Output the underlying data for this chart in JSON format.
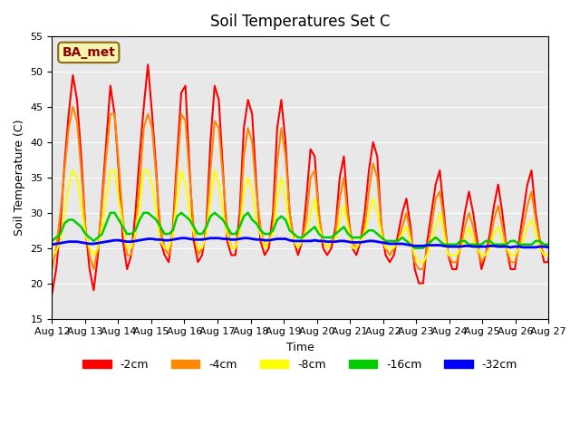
{
  "title": "Soil Temperatures Set C",
  "xlabel": "Time",
  "ylabel": "Soil Temperature (C)",
  "ylim": [
    15,
    55
  ],
  "yticks": [
    15,
    20,
    25,
    30,
    35,
    40,
    45,
    50,
    55
  ],
  "annotation": "BA_met",
  "legend_labels": [
    "-2cm",
    "-4cm",
    "-8cm",
    "-16cm",
    "-32cm"
  ],
  "colors": [
    "#ff0000",
    "#ff8800",
    "#ffff00",
    "#00cc00",
    "#0000ff"
  ],
  "background_color": "#e8e8e8",
  "dates": [
    "Aug 12",
    "Aug 13",
    "Aug 14",
    "Aug 15",
    "Aug 16",
    "Aug 17",
    "Aug 18",
    "Aug 19",
    "Aug 20",
    "Aug 21",
    "Aug 22",
    "Aug 23",
    "Aug 24",
    "Aug 25",
    "Aug 26",
    "Aug 27"
  ],
  "n_days": 16,
  "samples_per_day": 8,
  "neg2cm": [
    18.5,
    22,
    28,
    37,
    44,
    49.5,
    46,
    38,
    28,
    22,
    19,
    24,
    32,
    40,
    48,
    44,
    36,
    26,
    22,
    24,
    30,
    38,
    45,
    51,
    44,
    36,
    26,
    24,
    23,
    28,
    38,
    47,
    48,
    36,
    26,
    23,
    24,
    28,
    40,
    48,
    46,
    36,
    26,
    24,
    24,
    30,
    42,
    46,
    44,
    34,
    26,
    24,
    25,
    30,
    42,
    46,
    40,
    30,
    26,
    24,
    26,
    32,
    39,
    38,
    30,
    25,
    24,
    25,
    28,
    35,
    38,
    30,
    25,
    24,
    26,
    30,
    36,
    40,
    38,
    28,
    24,
    23,
    24,
    27,
    30,
    32,
    28,
    22,
    20,
    20,
    26,
    30,
    34,
    36,
    30,
    24,
    22,
    22,
    26,
    30,
    33,
    30,
    26,
    22,
    24,
    27,
    31,
    34,
    30,
    25,
    22,
    22,
    26,
    30,
    34,
    36,
    30,
    26,
    23,
    23,
    27,
    32,
    34,
    30,
    25,
    23,
    23,
    22
  ],
  "neg4cm": [
    22,
    25,
    30,
    36,
    42,
    45,
    43,
    36,
    28,
    24,
    22,
    25,
    31,
    38,
    44,
    44,
    37,
    29,
    24,
    24,
    27,
    34,
    42,
    44,
    42,
    35,
    28,
    25,
    24,
    27,
    36,
    44,
    43,
    35,
    28,
    24,
    25,
    27,
    36,
    43,
    42,
    35,
    28,
    25,
    25,
    28,
    38,
    42,
    40,
    33,
    28,
    25,
    26,
    28,
    37,
    42,
    38,
    30,
    26,
    25,
    26,
    29,
    35,
    36,
    30,
    26,
    25,
    26,
    27,
    32,
    35,
    29,
    26,
    25,
    26,
    28,
    33,
    37,
    35,
    28,
    25,
    24,
    25,
    26,
    28,
    30,
    27,
    23,
    22,
    22,
    25,
    28,
    32,
    33,
    29,
    24,
    23,
    23,
    25,
    28,
    30,
    28,
    25,
    23,
    24,
    26,
    29,
    31,
    28,
    25,
    23,
    23,
    25,
    28,
    31,
    33,
    29,
    26,
    24,
    24,
    26,
    30,
    31,
    28,
    25,
    24,
    24,
    23
  ],
  "neg8cm": [
    24,
    24.5,
    26,
    30,
    34,
    36,
    35,
    31,
    27,
    25,
    24,
    25,
    28,
    32,
    36,
    36,
    32,
    28,
    25,
    25,
    27,
    31,
    36,
    36,
    34,
    30,
    26,
    25,
    25,
    27,
    32,
    36,
    34,
    30,
    27,
    25,
    25,
    27,
    32,
    36,
    34,
    30,
    27,
    25,
    25,
    27,
    33,
    35,
    33,
    29,
    27,
    25,
    26,
    27,
    32,
    35,
    32,
    28,
    26,
    25,
    26,
    27,
    30,
    32,
    28,
    26,
    25,
    26,
    26,
    29,
    31,
    28,
    25,
    25,
    26,
    27,
    30,
    32,
    30,
    27,
    25,
    25,
    25,
    26,
    27,
    28,
    26,
    24,
    23,
    23,
    24,
    26,
    28,
    30,
    27,
    24,
    24,
    24,
    25,
    26,
    28,
    26,
    25,
    24,
    24,
    25,
    27,
    28,
    26,
    25,
    24,
    24,
    25,
    26,
    28,
    29,
    27,
    25,
    24,
    24,
    25,
    27,
    28,
    26,
    25,
    24,
    24,
    24
  ],
  "neg16cm": [
    26,
    26.5,
    27,
    28.5,
    29,
    29,
    28.5,
    28,
    27,
    26.5,
    26,
    26.5,
    27,
    28.5,
    30,
    30,
    29,
    28,
    27,
    27,
    27.5,
    29,
    30,
    30,
    29.5,
    29,
    28,
    27,
    27,
    27.5,
    29.5,
    30,
    29.5,
    29,
    28,
    27,
    27,
    28,
    29.5,
    30,
    29.5,
    29,
    28,
    27,
    27,
    28,
    29.5,
    30,
    29,
    28.5,
    27.5,
    27,
    27,
    27.5,
    29,
    29.5,
    29,
    27.5,
    27,
    26.5,
    26.5,
    27,
    27.5,
    28,
    27,
    26.5,
    26.5,
    26.5,
    27,
    27.5,
    28,
    27,
    26.5,
    26.5,
    26.5,
    27,
    27.5,
    27.5,
    27,
    26.5,
    26,
    26,
    26,
    26,
    26.5,
    26,
    25.5,
    25,
    25,
    25,
    25.5,
    26,
    26.5,
    26,
    25.5,
    25.5,
    25.5,
    25.5,
    26,
    26,
    25.5,
    25.5,
    25.5,
    25.5,
    26,
    26,
    25.5,
    25.5,
    25.5,
    25.5,
    26,
    26,
    25.5,
    25.5,
    25.5,
    25.5,
    26,
    26,
    25.5,
    25.5,
    25.5,
    25.5,
    26,
    26,
    25.5,
    25.5,
    25.5,
    25.5
  ],
  "neg32cm": [
    25.5,
    25.6,
    25.7,
    25.8,
    25.9,
    25.9,
    25.9,
    25.8,
    25.7,
    25.6,
    25.6,
    25.7,
    25.8,
    25.9,
    26.0,
    26.1,
    26.1,
    26.0,
    25.9,
    25.9,
    26.0,
    26.1,
    26.2,
    26.3,
    26.3,
    26.2,
    26.2,
    26.1,
    26.1,
    26.2,
    26.3,
    26.4,
    26.4,
    26.3,
    26.2,
    26.2,
    26.2,
    26.3,
    26.4,
    26.4,
    26.4,
    26.3,
    26.3,
    26.2,
    26.2,
    26.3,
    26.4,
    26.4,
    26.3,
    26.2,
    26.2,
    26.1,
    26.1,
    26.2,
    26.3,
    26.3,
    26.3,
    26.1,
    26.0,
    26.0,
    26.0,
    26.0,
    26.0,
    26.1,
    26.0,
    26.0,
    25.9,
    25.9,
    25.9,
    26.0,
    26.0,
    25.9,
    25.8,
    25.8,
    25.8,
    25.9,
    26.0,
    26.0,
    25.9,
    25.8,
    25.7,
    25.6,
    25.6,
    25.6,
    25.6,
    25.5,
    25.4,
    25.3,
    25.3,
    25.3,
    25.4,
    25.4,
    25.4,
    25.4,
    25.3,
    25.2,
    25.2,
    25.2,
    25.2,
    25.3,
    25.3,
    25.2,
    25.2,
    25.2,
    25.2,
    25.3,
    25.3,
    25.2,
    25.2,
    25.2,
    25.1,
    25.2,
    25.2,
    25.1,
    25.1,
    25.1,
    25.1,
    25.2,
    25.2,
    25.1,
    25.1,
    25.1,
    25.1,
    25.2,
    25.2,
    25.1,
    25.1,
    25.1
  ]
}
